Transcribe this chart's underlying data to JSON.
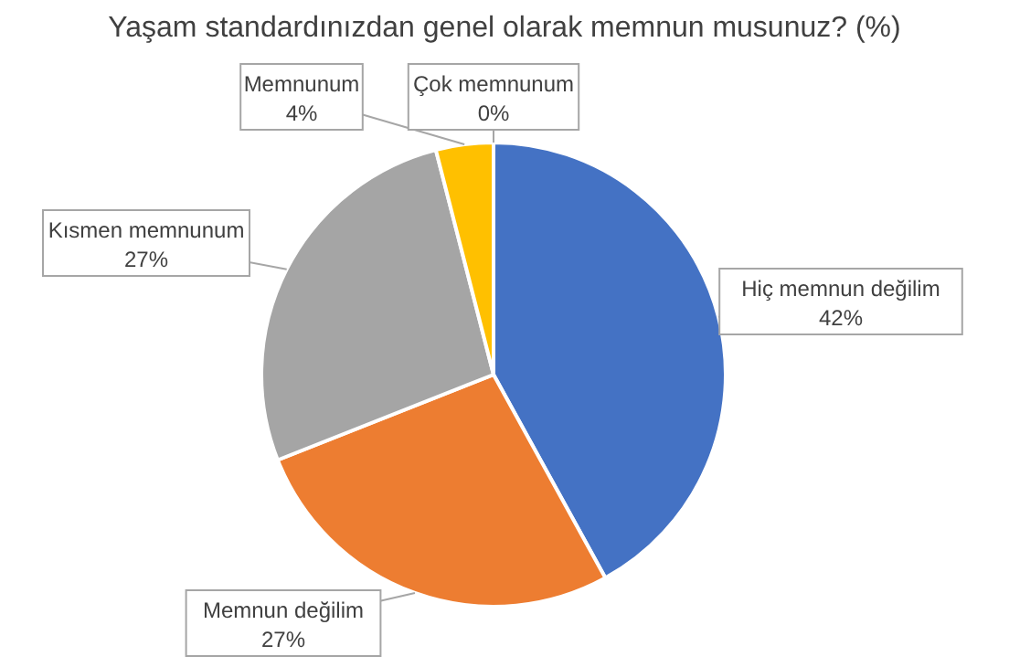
{
  "chart_data": {
    "type": "pie",
    "title": "Yaşam standardınızdan genel olarak memnun musunuz? (%)",
    "categories": [
      "Hiç memnun değilim",
      "Memnun değilim",
      "Kısmen memnunum",
      "Memnunum",
      "Çok memnunum"
    ],
    "values": [
      42,
      27,
      27,
      4,
      0
    ],
    "value_labels": [
      "42%",
      "27%",
      "27%",
      "4%",
      "0%"
    ],
    "colors": [
      "#4472c4",
      "#ed7d31",
      "#a5a5a5",
      "#ffc000",
      "#5b9bd5"
    ]
  }
}
